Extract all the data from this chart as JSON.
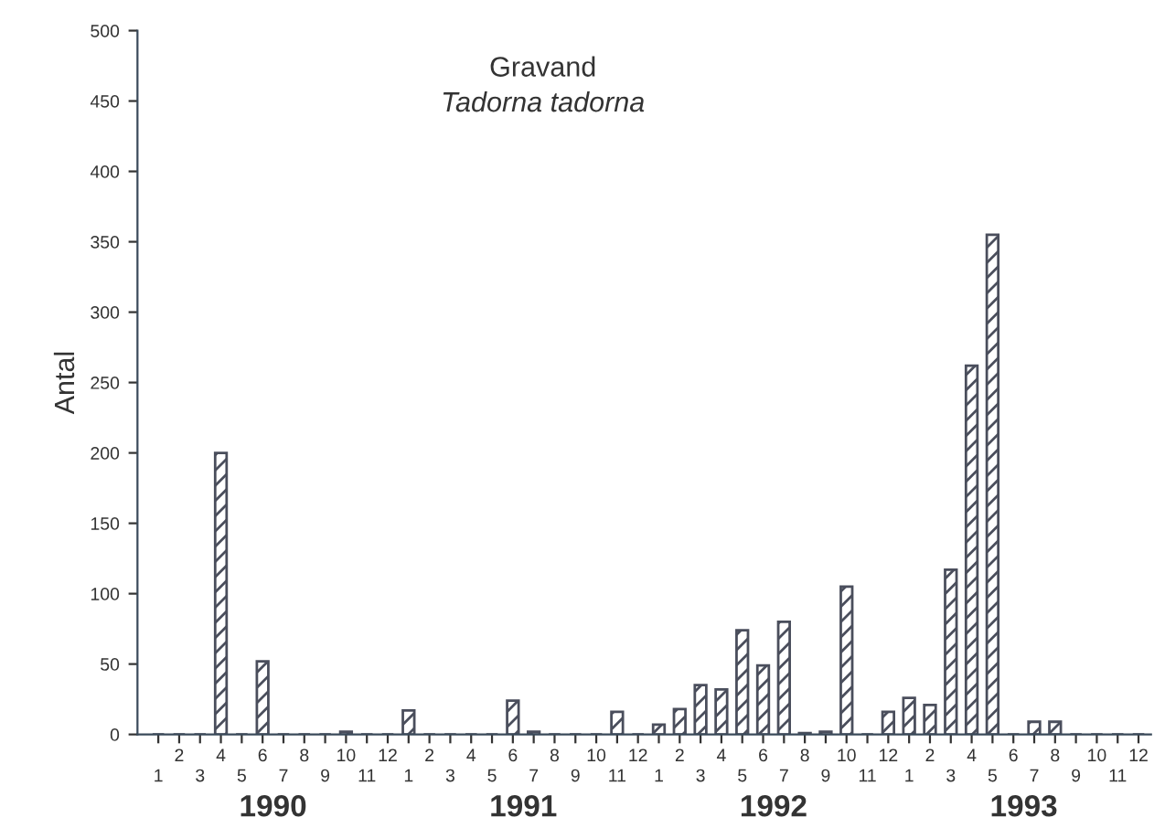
{
  "chart_data": {
    "type": "bar",
    "title": "Gravand",
    "subtitle": "Tadorna tadorna",
    "ylabel": "Antal",
    "categories": [
      "1",
      "2",
      "3",
      "4",
      "5",
      "6",
      "7",
      "8",
      "9",
      "10",
      "11",
      "12",
      "1",
      "2",
      "3",
      "4",
      "5",
      "6",
      "7",
      "8",
      "9",
      "10",
      "11",
      "12",
      "1",
      "2",
      "3",
      "4",
      "5",
      "6",
      "7",
      "8",
      "9",
      "10",
      "11",
      "12",
      "1",
      "2",
      "3",
      "4",
      "5",
      "6",
      "7",
      "8",
      "9",
      "10",
      "11",
      "12"
    ],
    "values": [
      0,
      0,
      0,
      200,
      0,
      52,
      0,
      0,
      0,
      2,
      0,
      0,
      17,
      0,
      0,
      0,
      0,
      24,
      2,
      0,
      0,
      0,
      16,
      0,
      7,
      18,
      35,
      32,
      74,
      49,
      80,
      1,
      2,
      105,
      0,
      16,
      26,
      21,
      117,
      262,
      355,
      0,
      9,
      9,
      0,
      0,
      0,
      0
    ],
    "color": "#4a4e5c",
    "ylim": [
      0,
      500
    ],
    "yticks": [
      0,
      50,
      100,
      150,
      200,
      250,
      300,
      350,
      400,
      450,
      500
    ],
    "grid": false,
    "annotations": [
      "1990",
      "1991",
      "1992",
      "1993"
    ]
  }
}
